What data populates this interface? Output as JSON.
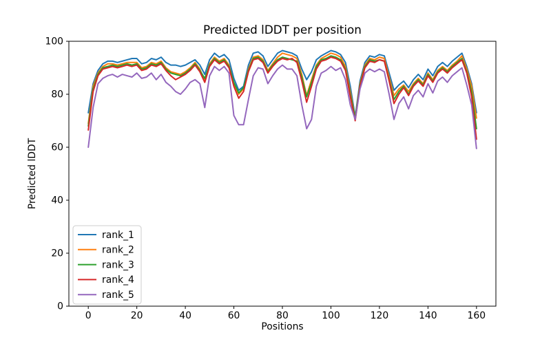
{
  "figure": {
    "background": "#ffffff",
    "frame_color": "#000000",
    "text_color": "#000000",
    "legend_border_color": "#cccccc"
  },
  "chart_data": {
    "type": "line",
    "title": "Predicted lDDT per position",
    "xlabel": "Positions",
    "ylabel": "Predicted lDDT",
    "xlim": [
      -8,
      168
    ],
    "ylim": [
      0,
      100
    ],
    "xticks": [
      0,
      20,
      40,
      60,
      80,
      100,
      120,
      140,
      160
    ],
    "yticks": [
      0,
      20,
      40,
      60,
      80,
      100
    ],
    "grid": false,
    "legend_position": "lower left",
    "x": [
      0,
      2,
      4,
      6,
      8,
      10,
      12,
      14,
      16,
      18,
      20,
      22,
      24,
      26,
      28,
      30,
      32,
      34,
      36,
      38,
      40,
      42,
      44,
      46,
      48,
      50,
      52,
      54,
      56,
      58,
      60,
      62,
      64,
      66,
      68,
      70,
      72,
      74,
      76,
      78,
      80,
      82,
      84,
      86,
      88,
      90,
      92,
      94,
      96,
      98,
      100,
      102,
      104,
      106,
      108,
      110,
      112,
      114,
      116,
      118,
      120,
      122,
      124,
      126,
      128,
      130,
      132,
      134,
      136,
      138,
      140,
      142,
      144,
      146,
      148,
      150,
      152,
      154,
      156,
      158,
      160
    ],
    "series": [
      {
        "name": "rank_1",
        "color": "#1f77b4",
        "values": [
          73,
          84,
          89,
          91.5,
          92.5,
          92.5,
          92,
          92.5,
          93,
          93.5,
          93.5,
          91.5,
          92,
          93.5,
          93,
          94,
          92,
          91,
          91,
          90.5,
          91,
          92,
          93,
          91,
          87.5,
          93,
          95.5,
          94,
          95,
          93,
          86,
          81.5,
          83,
          91,
          95.5,
          96,
          94.5,
          90.5,
          93,
          95.5,
          96.5,
          96,
          95.5,
          94.5,
          89.5,
          85.5,
          88.5,
          93,
          94.5,
          95.5,
          96.5,
          96,
          95,
          92,
          83,
          71.5,
          85,
          92,
          94.5,
          94,
          95,
          94.5,
          88,
          81.5,
          83.5,
          85,
          82.5,
          85.5,
          87.5,
          85.5,
          89.5,
          87,
          90.5,
          92,
          90.5,
          92.5,
          94,
          95.5,
          90.5,
          84,
          73
        ]
      },
      {
        "name": "rank_2",
        "color": "#ff7f0e",
        "values": [
          69,
          83,
          88,
          90.5,
          91.5,
          91.5,
          91,
          91.5,
          92,
          92,
          92,
          90,
          90.5,
          92,
          91.5,
          92.5,
          90,
          88.5,
          88,
          87.5,
          88.5,
          90,
          92,
          89.5,
          85,
          91.5,
          94,
          92.5,
          93.5,
          91,
          84,
          80,
          82,
          89.5,
          94,
          94.5,
          93,
          89,
          91.5,
          94,
          95.5,
          95,
          94.5,
          93.5,
          87.5,
          79.5,
          85.5,
          91,
          93.5,
          94.5,
          95.5,
          95,
          94,
          90.5,
          81,
          71,
          84,
          91,
          93.5,
          93,
          94,
          93.5,
          86.5,
          79.5,
          82,
          83.5,
          81,
          84,
          86,
          84,
          88,
          85.5,
          89,
          90.5,
          89,
          91,
          92.5,
          94.5,
          89.5,
          83,
          71
        ]
      },
      {
        "name": "rank_3",
        "color": "#2ca02c",
        "values": [
          68,
          82,
          87.5,
          90,
          90.5,
          91,
          90.5,
          91,
          91.5,
          91,
          91.5,
          89.5,
          90,
          91.5,
          91,
          92,
          89.5,
          88,
          87.5,
          87,
          88,
          89.5,
          91.5,
          89,
          86,
          91,
          93.5,
          92,
          93,
          90.5,
          84.5,
          80.5,
          82.5,
          89,
          93.5,
          94,
          92.5,
          88.5,
          91,
          93,
          94,
          93.5,
          93,
          92.5,
          86.5,
          79,
          84.5,
          90.5,
          93,
          93.5,
          94.5,
          94,
          93,
          89.5,
          80,
          71,
          83.5,
          90.5,
          93,
          92.5,
          93,
          92.5,
          85.5,
          78,
          81,
          83,
          80,
          83.5,
          85.5,
          83.5,
          87.5,
          85,
          88.5,
          90,
          88.5,
          90.5,
          92,
          93.5,
          88.5,
          81,
          67
        ]
      },
      {
        "name": "rank_4",
        "color": "#d62728",
        "values": [
          66.5,
          81,
          87,
          89.5,
          90,
          90.5,
          90,
          90.5,
          91,
          90.5,
          91,
          89,
          89.5,
          91,
          90.5,
          91.5,
          89,
          87,
          85.5,
          86.5,
          87.5,
          89,
          91,
          88.5,
          84.5,
          90.5,
          93,
          91.5,
          92.5,
          90,
          83,
          78.5,
          81,
          88.5,
          93,
          93.5,
          92,
          88,
          90.5,
          92.5,
          93.5,
          93,
          93.5,
          92,
          85,
          77,
          83,
          89.5,
          92.5,
          93,
          94,
          93.5,
          92.5,
          89,
          79,
          70,
          83,
          90,
          92.5,
          92,
          93,
          92.5,
          85,
          76.5,
          80,
          82.5,
          79.5,
          83,
          85,
          83,
          87,
          84.5,
          88,
          89.5,
          88,
          90,
          91.5,
          93,
          88,
          79,
          63
        ]
      },
      {
        "name": "rank_5",
        "color": "#9467bd",
        "values": [
          60,
          75,
          84,
          86,
          87,
          87.5,
          86.5,
          87.5,
          87,
          86.5,
          88,
          86,
          86.5,
          88,
          85.5,
          87.5,
          84.5,
          83,
          81,
          80,
          82,
          84.5,
          85.5,
          84,
          75,
          87,
          90.5,
          89,
          90.5,
          88,
          72,
          68.5,
          68.5,
          78,
          87,
          90,
          89.5,
          84,
          87,
          89.5,
          91,
          89.5,
          89.5,
          87,
          76,
          67,
          70.5,
          83,
          88,
          89,
          90.5,
          89,
          90,
          85.5,
          76,
          70.5,
          82,
          88,
          89.5,
          88.5,
          89.5,
          88.5,
          80,
          70.5,
          76.5,
          79,
          74.5,
          79.5,
          81.5,
          79,
          84,
          80.5,
          85,
          86.5,
          84.5,
          87,
          88.5,
          90,
          83.5,
          76,
          59.5
        ]
      }
    ]
  }
}
